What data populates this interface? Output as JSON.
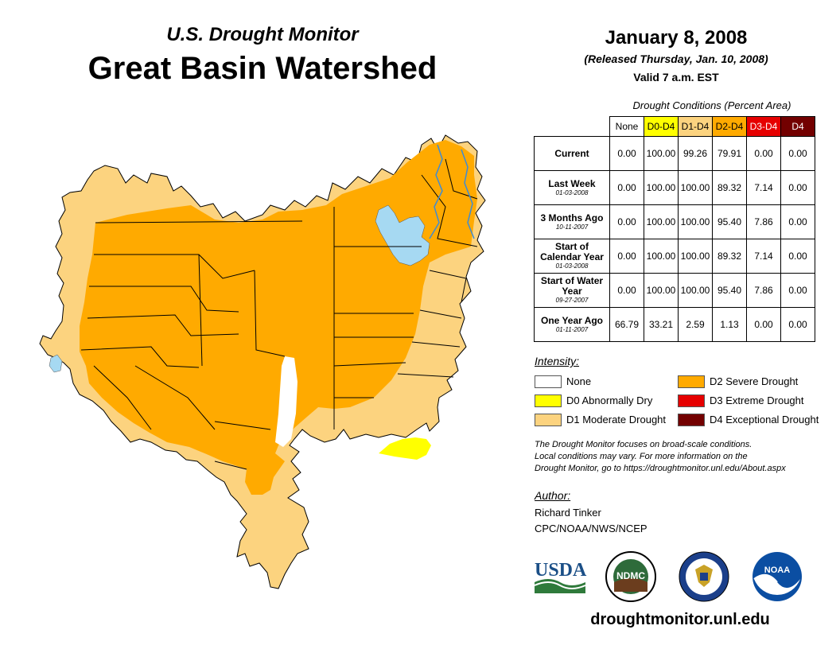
{
  "header": {
    "subtitle": "U.S. Drought Monitor",
    "title": "Great Basin Watershed",
    "date": "January 8, 2008",
    "released": "(Released Thursday, Jan. 10, 2008)",
    "valid": "Valid 7 a.m. EST"
  },
  "conditions": {
    "caption": "Drought Conditions (Percent Area)",
    "columns": [
      "None",
      "D0-D4",
      "D1-D4",
      "D2-D4",
      "D3-D4",
      "D4"
    ],
    "column_colors": [
      "#ffffff",
      "#ffff00",
      "#fcd37f",
      "#ffaa00",
      "#e60000",
      "#730000"
    ],
    "rows": [
      {
        "label": "Current",
        "date": "",
        "values": [
          "0.00",
          "100.00",
          "99.26",
          "79.91",
          "0.00",
          "0.00"
        ]
      },
      {
        "label": "Last Week",
        "date": "01-03-2008",
        "values": [
          "0.00",
          "100.00",
          "100.00",
          "89.32",
          "7.14",
          "0.00"
        ]
      },
      {
        "label": "3 Months Ago",
        "date": "10-11-2007",
        "values": [
          "0.00",
          "100.00",
          "100.00",
          "95.40",
          "7.86",
          "0.00"
        ]
      },
      {
        "label": "Start of Calendar Year",
        "date": "01-03-2008",
        "values": [
          "0.00",
          "100.00",
          "100.00",
          "89.32",
          "7.14",
          "0.00"
        ]
      },
      {
        "label": "Start of Water Year",
        "date": "09-27-2007",
        "values": [
          "0.00",
          "100.00",
          "100.00",
          "95.40",
          "7.86",
          "0.00"
        ]
      },
      {
        "label": "One Year Ago",
        "date": "01-11-2007",
        "values": [
          "66.79",
          "33.21",
          "2.59",
          "1.13",
          "0.00",
          "0.00"
        ]
      }
    ]
  },
  "legend": {
    "title": "Intensity:",
    "items": [
      {
        "label": "None",
        "color": "#ffffff"
      },
      {
        "label": "D0 Abnormally Dry",
        "color": "#ffff00"
      },
      {
        "label": "D1 Moderate Drought",
        "color": "#fcd37f"
      },
      {
        "label": "D2 Severe Drought",
        "color": "#ffaa00"
      },
      {
        "label": "D3 Extreme Drought",
        "color": "#e60000"
      },
      {
        "label": "D4 Exceptional Drought",
        "color": "#730000"
      }
    ]
  },
  "note": {
    "line1": "The Drought Monitor focuses on broad-scale conditions.",
    "line2": "Local conditions may vary. For more information on the",
    "line3": "Drought Monitor, go to https://droughtmonitor.unl.edu/About.aspx"
  },
  "author": {
    "title": "Author:",
    "name": "Richard Tinker",
    "org": "CPC/NOAA/NWS/NCEP"
  },
  "logos": {
    "usda": "USDA",
    "ndmc": "NDMC",
    "noaa": "NOAA"
  },
  "footer": {
    "site": "droughtmonitor.unl.edu"
  },
  "map": {
    "colors": {
      "d1": "#fcd37f",
      "d2": "#ffaa00",
      "d0": "#ffff00",
      "water": "#a6d9f2",
      "river": "#3d8bd6"
    }
  }
}
